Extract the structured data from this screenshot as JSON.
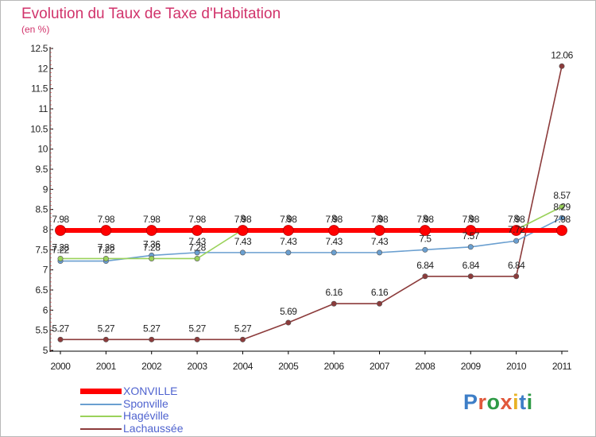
{
  "brand": {
    "name": "Proxiti",
    "letter_colors": [
      "#3d7ec7",
      "#e1583b",
      "#2e9a46",
      "#e1583b",
      "#e8b324",
      "#3d7ec7",
      "#2e9a46"
    ]
  },
  "chart_data": {
    "type": "line",
    "title": "Evolution du Taux de Taxe d'Habitation",
    "subtitle": "(en %)",
    "xlabel": "",
    "ylabel": "",
    "categories": [
      "2000",
      "2001",
      "2002",
      "2003",
      "2004",
      "2005",
      "2006",
      "2007",
      "2008",
      "2009",
      "2010",
      "2011"
    ],
    "ylim": [
      5,
      12.5
    ],
    "yticks": [
      "5",
      "5.5",
      "6",
      "6.5",
      "7",
      "7.5",
      "8",
      "8.5",
      "9",
      "9.5",
      "10",
      "10.5",
      "11",
      "11.5",
      "12",
      "12.5"
    ],
    "grid": false,
    "legend_position": "bottom-left",
    "series": [
      {
        "name": "XONVILLE",
        "color": "#ff0000",
        "values": [
          7.98,
          7.98,
          7.98,
          7.98,
          7.98,
          7.98,
          7.98,
          7.98,
          7.98,
          7.98,
          7.98,
          7.98
        ],
        "labels": [
          "7.98",
          "7.98",
          "7.98",
          "7.98",
          "7.98",
          "7.98",
          "7.98",
          "7.98",
          "7.98",
          "7.98",
          "7.98",
          "7.98"
        ]
      },
      {
        "name": "Sponville",
        "color": "#6a9fd0",
        "values": [
          7.22,
          7.22,
          7.36,
          7.43,
          7.43,
          7.43,
          7.43,
          7.43,
          7.5,
          7.57,
          7.72,
          8.29
        ],
        "labels": [
          "7.22",
          "7.22",
          "7.36",
          "7.43",
          "7.43",
          "7.43",
          "7.43",
          "7.43",
          "7.5",
          "7.57",
          "7.72",
          "8.29"
        ]
      },
      {
        "name": "Hagéville",
        "color": "#9ad25a",
        "values": [
          7.28,
          7.28,
          7.28,
          7.28,
          8,
          8,
          8,
          8,
          8,
          8,
          8,
          8.57
        ],
        "labels": [
          "7.28",
          "7.28",
          "7.28",
          "7.28",
          "8",
          "8",
          "8",
          "8",
          "8",
          "8",
          "8",
          "8.57"
        ]
      },
      {
        "name": "Lachaussée",
        "color": "#8c3b3b",
        "values": [
          5.27,
          5.27,
          5.27,
          5.27,
          5.27,
          5.69,
          6.16,
          6.16,
          6.84,
          6.84,
          6.84,
          12.06
        ],
        "labels": [
          "5.27",
          "5.27",
          "5.27",
          "5.27",
          "5.27",
          "5.69",
          "6.16",
          "6.16",
          "6.84",
          "6.84",
          "6.84",
          "12.06"
        ]
      }
    ]
  }
}
